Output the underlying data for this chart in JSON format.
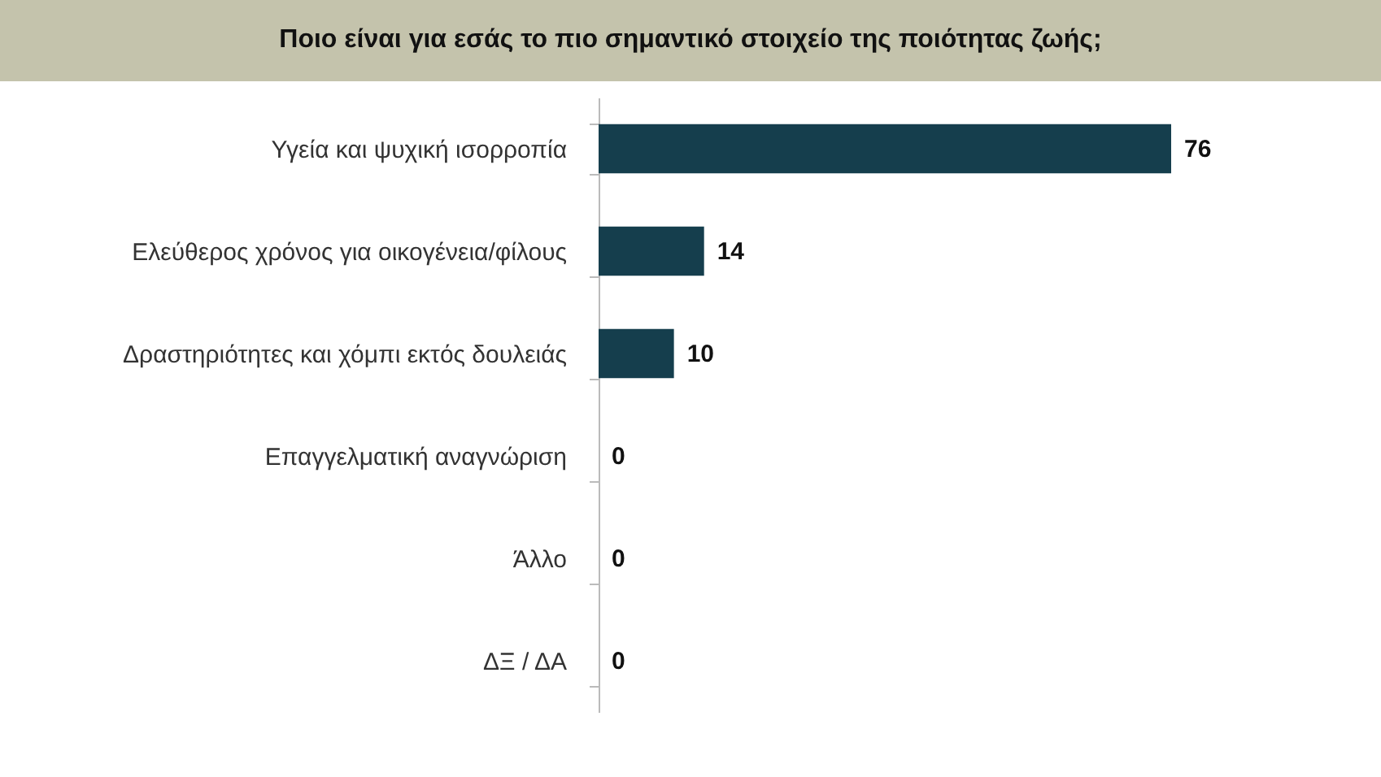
{
  "chart_data": {
    "type": "bar",
    "orientation": "horizontal",
    "title": "Ποιο είναι για εσάς το πιο σημαντικό στοιχείο της ποιότητας ζωής;",
    "categories": [
      "Υγεία και ψυχική ισορροπία",
      "Ελεύθερος χρόνος για οικογένεια/φίλους",
      "Δραστηριότητες και χόμπι εκτός δουλειάς",
      "Επαγγελματική αναγνώριση",
      "Άλλο",
      "ΔΞ / ΔΑ"
    ],
    "values": [
      76,
      14,
      10,
      0,
      0,
      0
    ],
    "color": "#153e4d",
    "data_labels": true
  }
}
